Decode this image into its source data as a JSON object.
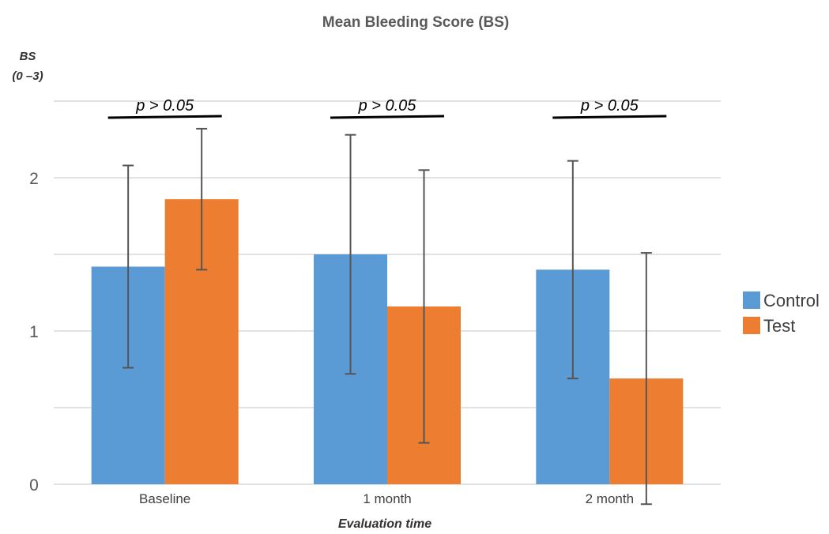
{
  "chart_data": {
    "type": "bar",
    "title": "Mean Bleeding Score (BS)",
    "ylabel": "BS",
    "ylabel_sub": "(0 –3)",
    "xlabel": "Evaluation time",
    "categories": [
      "Baseline",
      "1 month",
      "2 month"
    ],
    "ylim": [
      0,
      2.5
    ],
    "yticks": [
      0,
      0.5,
      1,
      1.5,
      2,
      2.5
    ],
    "ytick_labels": [
      "0",
      "",
      "1",
      "",
      "2",
      ""
    ],
    "grid": true,
    "legend_position": "right",
    "series": [
      {
        "name": "Control",
        "color": "#5b9bd5",
        "values": [
          1.42,
          1.5,
          1.4
        ],
        "error": [
          0.66,
          0.78,
          0.71
        ]
      },
      {
        "name": "Test",
        "color": "#ed7d31",
        "values": [
          1.86,
          1.16,
          0.69
        ],
        "error": [
          0.46,
          0.89,
          0.82
        ]
      }
    ],
    "annotations": [
      "p > 0.05",
      "p > 0.05",
      "p > 0.05"
    ]
  }
}
